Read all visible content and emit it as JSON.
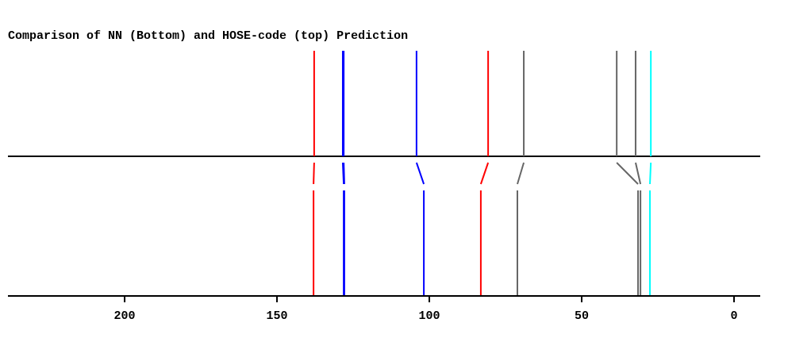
{
  "chart_data": {
    "type": "spectrum-comparison",
    "title": "Comparison of NN (Bottom) and HOSE-code (top) Prediction",
    "xlim": [
      238.3,
      -8.6
    ],
    "xticks": [
      200,
      150,
      100,
      50,
      0
    ],
    "colors": [
      "#ff0000",
      "#0000ff",
      "#0000ff",
      "#0000ff",
      "#ff0000",
      "#666666",
      "#666666",
      "#666666",
      "#00ffff"
    ],
    "top_values": [
      137.8,
      128.4,
      128.1,
      104.2,
      80.7,
      69.0,
      38.5,
      32.3,
      27.3
    ],
    "bottom_values": [
      138.0,
      128.1,
      127.9,
      101.8,
      83.1,
      71.1,
      31.5,
      30.7,
      27.6
    ]
  }
}
